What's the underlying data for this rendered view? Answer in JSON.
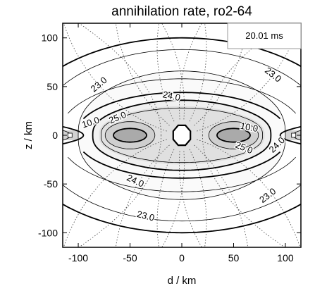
{
  "chart_data": {
    "type": "contour",
    "title": "annihilation rate, ro2-64",
    "xlabel": "d / km",
    "ylabel": "z / km",
    "xlim": [
      -115,
      115
    ],
    "ylim": [
      -115,
      115
    ],
    "x_ticks": [
      -100,
      -50,
      0,
      50,
      100
    ],
    "y_ticks": [
      -100,
      -50,
      0,
      50,
      100
    ],
    "x_tick_labels": [
      "-100",
      "-50",
      "0",
      "50",
      "100"
    ],
    "y_tick_labels": [
      "-100",
      "-50",
      "0",
      "50",
      "100"
    ],
    "time_annotation": "20.01 ms",
    "grid": false,
    "contour_labels": [
      {
        "text": "23.0",
        "x": -80,
        "y": 52,
        "angle": -40
      },
      {
        "text": "24.0",
        "x": -10,
        "y": 40,
        "angle": 12
      },
      {
        "text": "23.0",
        "x": 88,
        "y": 62,
        "angle": 38
      },
      {
        "text": "10.0",
        "x": -88,
        "y": 13,
        "angle": -18
      },
      {
        "text": "25.0",
        "x": -62,
        "y": 18,
        "angle": -22
      },
      {
        "text": "10.0",
        "x": 65,
        "y": 8,
        "angle": 10
      },
      {
        "text": "25.0",
        "x": 60,
        "y": -13,
        "angle": 22
      },
      {
        "text": "24.0",
        "x": 92,
        "y": -10,
        "angle": -45
      },
      {
        "text": "24.0",
        "x": -45,
        "y": -47,
        "angle": 25
      },
      {
        "text": "23.0",
        "x": 83,
        "y": -62,
        "angle": -38
      },
      {
        "text": "23.0",
        "x": -35,
        "y": -83,
        "angle": 14
      }
    ]
  }
}
